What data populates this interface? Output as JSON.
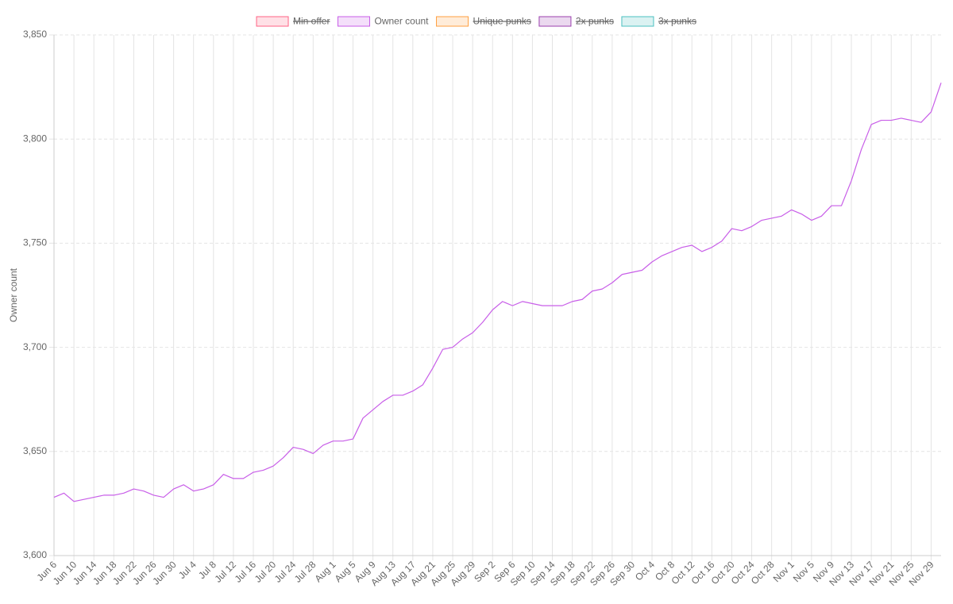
{
  "chart_data": {
    "type": "line",
    "ylabel": "Owner count",
    "categories": [
      "Jun 6",
      null,
      "Jun 10",
      null,
      "Jun 14",
      null,
      "Jun 18",
      null,
      "Jun 22",
      null,
      "Jun 26",
      null,
      "Jun 30",
      null,
      "Jul 4",
      null,
      "Jul 8",
      null,
      "Jul 12",
      null,
      "Jul 16",
      null,
      "Jul 20",
      null,
      "Jul 24",
      null,
      "Jul 28",
      null,
      "Aug 1",
      null,
      "Aug 5",
      null,
      "Aug 9",
      null,
      "Aug 13",
      null,
      "Aug 17",
      null,
      "Aug 21",
      null,
      "Aug 25",
      null,
      "Aug 29",
      null,
      "Sep 2",
      null,
      "Sep 6",
      null,
      "Sep 10",
      null,
      "Sep 14",
      null,
      "Sep 18",
      null,
      "Sep 22",
      null,
      "Sep 26",
      null,
      "Sep 30",
      null,
      "Oct 4",
      null,
      "Oct 8",
      null,
      "Oct 12",
      null,
      "Oct 16",
      null,
      "Oct 20",
      null,
      "Oct 24",
      null,
      "Oct 28",
      null,
      "Nov 1",
      null,
      "Nov 5",
      null,
      "Nov 9",
      null,
      "Nov 13",
      null,
      "Nov 17",
      null,
      "Nov 21",
      null,
      "Nov 25",
      null,
      "Nov 29",
      null
    ],
    "series": [
      {
        "name": "Min offer",
        "color": "#ff6384",
        "hidden": true
      },
      {
        "name": "Owner count",
        "color": "#c85ee8",
        "hidden": false,
        "values": [
          3628,
          3630,
          3626,
          3627,
          3628,
          3629,
          3629,
          3630,
          3632,
          3631,
          3629,
          3628,
          3632,
          3634,
          3631,
          3632,
          3634,
          3639,
          3637,
          3637,
          3640,
          3641,
          3643,
          3647,
          3652,
          3651,
          3649,
          3653,
          3655,
          3655,
          3656,
          3666,
          3670,
          3674,
          3677,
          3677,
          3679,
          3682,
          3690,
          3699,
          3700,
          3704,
          3707,
          3712,
          3718,
          3722,
          3720,
          3722,
          3721,
          3720,
          3720,
          3720,
          3722,
          3723,
          3727,
          3728,
          3731,
          3735,
          3736,
          3737,
          3741,
          3744,
          3746,
          3748,
          3749,
          3746,
          3748,
          3751,
          3757,
          3756,
          3758,
          3761,
          3762,
          3763,
          3766,
          3764,
          3761,
          3763,
          3768,
          3768,
          3780,
          3795,
          3807,
          3809,
          3809,
          3810,
          3809,
          3808,
          3813,
          3827
        ]
      },
      {
        "name": "Unique punks",
        "color": "#ff9f40",
        "hidden": true
      },
      {
        "name": "2x punks",
        "color": "#9b3fae",
        "hidden": true
      },
      {
        "name": "3x punks",
        "color": "#4bc0c0",
        "hidden": true
      }
    ],
    "ylim": [
      3600,
      3850
    ],
    "yticks": [
      {
        "value": 3600,
        "label": "3,600"
      },
      {
        "value": 3650,
        "label": "3,650"
      },
      {
        "value": 3700,
        "label": "3,700"
      },
      {
        "value": 3750,
        "label": "3,750"
      },
      {
        "value": 3800,
        "label": "3,800"
      },
      {
        "value": 3850,
        "label": "3,850"
      }
    ],
    "grid": true
  }
}
